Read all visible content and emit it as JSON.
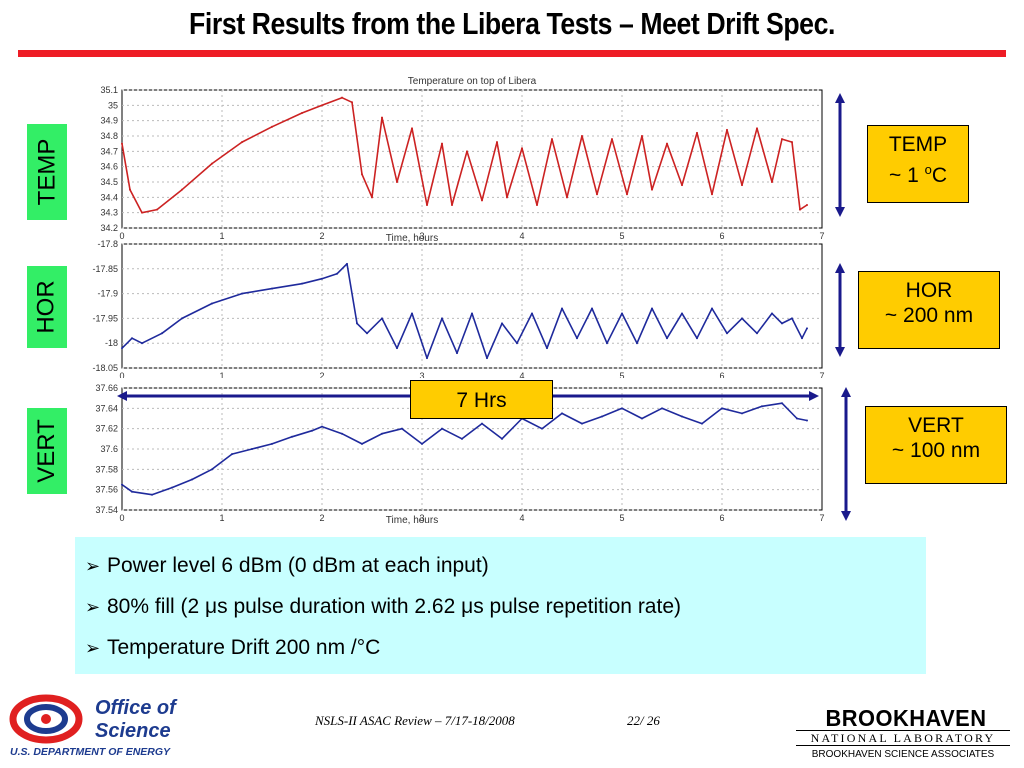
{
  "slide": {
    "title": "First Results from the Libera Tests – Meet Drift Spec."
  },
  "side_labels": {
    "temp": "TEMP",
    "hor": "HOR",
    "vert": "VERT"
  },
  "callouts": {
    "temp": {
      "line1": "TEMP",
      "line2_prefix": "~ 1 ",
      "line2_sup": "o",
      "line2_suffix": "C"
    },
    "hor": {
      "line1": "HOR",
      "line2": "~ 200 nm"
    },
    "vert": {
      "line1": "VERT",
      "line2": "~ 100 nm"
    }
  },
  "duration_label": "7 Hrs",
  "bullets": [
    "Power level 6 dBm (0 dBm at each input)",
    "80% fill (2 μs pulse duration with 2.62 μs pulse repetition rate)",
    "Temperature Drift 200 nm /°C"
  ],
  "bullet_marker": "➢",
  "footer": {
    "review": "NSLS-II ASAC  Review   – 7/17-18/2008",
    "page": "22/ 26",
    "doe_line1": "Office of",
    "doe_line2": "Science",
    "doe_line3": "U.S. DEPARTMENT OF ENERGY",
    "bnl_name": "BROOKHAVEN",
    "bnl_sub": "NATIONAL LABORATORY",
    "bnl_assoc": "BROOKHAVEN SCIENCE ASSOCIATES"
  },
  "colors": {
    "title_rule": "#ee1c25",
    "temp_trace": "#cc2222",
    "position_trace": "#1f2a9c",
    "arrow": "#1a1a8c",
    "callout_fill": "#ffcc00",
    "label_fill": "#33ee66",
    "bullet_fill": "#c8ffff"
  },
  "chart_data": [
    {
      "type": "line",
      "title": "Temperature on top of Libera",
      "xlabel": "Time, hours",
      "ylabel": "",
      "xlim": [
        0,
        7
      ],
      "ylim": [
        34.2,
        35.1
      ],
      "xticks": [
        "0",
        "1",
        "2",
        "3",
        "4",
        "5",
        "6",
        "7"
      ],
      "yticks": [
        "34.2",
        "34.3",
        "34.4",
        "34.5",
        "34.6",
        "34.7",
        "34.8",
        "34.9",
        "35",
        "35.1"
      ],
      "grid": true,
      "series": [
        {
          "x": [
            0,
            0.08,
            0.2,
            0.35,
            0.6,
            0.9,
            1.2,
            1.5,
            1.8,
            2.0,
            2.2,
            2.3,
            2.4,
            2.5,
            2.6,
            2.75,
            2.9,
            3.05,
            3.2,
            3.3,
            3.45,
            3.6,
            3.75,
            3.85,
            4.0,
            4.15,
            4.3,
            4.45,
            4.6,
            4.75,
            4.9,
            5.05,
            5.2,
            5.3,
            5.45,
            5.6,
            5.75,
            5.9,
            6.05,
            6.2,
            6.35,
            6.5,
            6.6,
            6.7,
            6.78,
            6.85
          ],
          "values": [
            34.75,
            34.45,
            34.3,
            34.32,
            34.45,
            34.62,
            34.76,
            34.86,
            34.95,
            35.0,
            35.05,
            35.02,
            34.55,
            34.4,
            34.92,
            34.5,
            34.85,
            34.35,
            34.75,
            34.35,
            34.7,
            34.38,
            34.76,
            34.4,
            34.72,
            34.35,
            34.78,
            34.4,
            34.8,
            34.42,
            34.78,
            34.42,
            34.8,
            34.45,
            34.75,
            34.48,
            34.82,
            34.42,
            34.84,
            34.48,
            34.85,
            34.5,
            34.78,
            34.76,
            34.32,
            34.35
          ]
        }
      ]
    },
    {
      "type": "line",
      "title": "",
      "xlabel": "",
      "ylabel": "",
      "xlim": [
        0,
        7
      ],
      "ylim": [
        -18.05,
        -17.8
      ],
      "xticks": [
        "0",
        "1",
        "2",
        "3",
        "4",
        "5",
        "6",
        "7"
      ],
      "yticks": [
        "-17.8",
        "-17.85",
        "-17.9",
        "-17.95",
        "-18",
        "-18.05"
      ],
      "grid": true,
      "series": [
        {
          "x": [
            0,
            0.1,
            0.2,
            0.4,
            0.6,
            0.9,
            1.2,
            1.5,
            1.8,
            2.0,
            2.15,
            2.25,
            2.35,
            2.45,
            2.6,
            2.75,
            2.9,
            3.05,
            3.2,
            3.35,
            3.5,
            3.65,
            3.8,
            3.95,
            4.1,
            4.25,
            4.4,
            4.55,
            4.7,
            4.85,
            5.0,
            5.15,
            5.3,
            5.45,
            5.6,
            5.75,
            5.9,
            6.05,
            6.2,
            6.35,
            6.5,
            6.6,
            6.7,
            6.8,
            6.85
          ],
          "values": [
            -18.01,
            -17.99,
            -18.0,
            -17.98,
            -17.95,
            -17.92,
            -17.9,
            -17.89,
            -17.88,
            -17.87,
            -17.86,
            -17.84,
            -17.96,
            -17.98,
            -17.95,
            -18.01,
            -17.94,
            -18.03,
            -17.95,
            -18.02,
            -17.94,
            -18.03,
            -17.96,
            -18.0,
            -17.94,
            -18.01,
            -17.93,
            -17.99,
            -17.93,
            -18.0,
            -17.94,
            -18.0,
            -17.93,
            -17.99,
            -17.94,
            -17.99,
            -17.93,
            -17.98,
            -17.95,
            -17.98,
            -17.94,
            -17.96,
            -17.95,
            -17.99,
            -17.97
          ]
        }
      ]
    },
    {
      "type": "line",
      "title": "",
      "xlabel": "Time, hours",
      "ylabel": "",
      "xlim": [
        0,
        7
      ],
      "ylim": [
        37.54,
        37.66
      ],
      "xticks": [
        "0",
        "1",
        "2",
        "3",
        "4",
        "5",
        "6",
        "7"
      ],
      "yticks": [
        "37.54",
        "37.56",
        "37.58",
        "37.6",
        "37.62",
        "37.64",
        "37.66"
      ],
      "grid": true,
      "series": [
        {
          "x": [
            0,
            0.1,
            0.3,
            0.5,
            0.7,
            0.9,
            1.1,
            1.3,
            1.5,
            1.7,
            1.9,
            2.0,
            2.2,
            2.4,
            2.6,
            2.8,
            3.0,
            3.2,
            3.4,
            3.6,
            3.8,
            4.0,
            4.2,
            4.4,
            4.6,
            4.8,
            5.0,
            5.2,
            5.4,
            5.6,
            5.8,
            6.0,
            6.2,
            6.4,
            6.6,
            6.75,
            6.85
          ],
          "values": [
            37.565,
            37.558,
            37.555,
            37.562,
            37.57,
            37.58,
            37.595,
            37.6,
            37.605,
            37.612,
            37.618,
            37.622,
            37.615,
            37.605,
            37.615,
            37.62,
            37.605,
            37.62,
            37.61,
            37.625,
            37.61,
            37.63,
            37.62,
            37.635,
            37.625,
            37.632,
            37.64,
            37.63,
            37.64,
            37.632,
            37.625,
            37.64,
            37.635,
            37.642,
            37.645,
            37.63,
            37.628
          ]
        }
      ]
    }
  ]
}
